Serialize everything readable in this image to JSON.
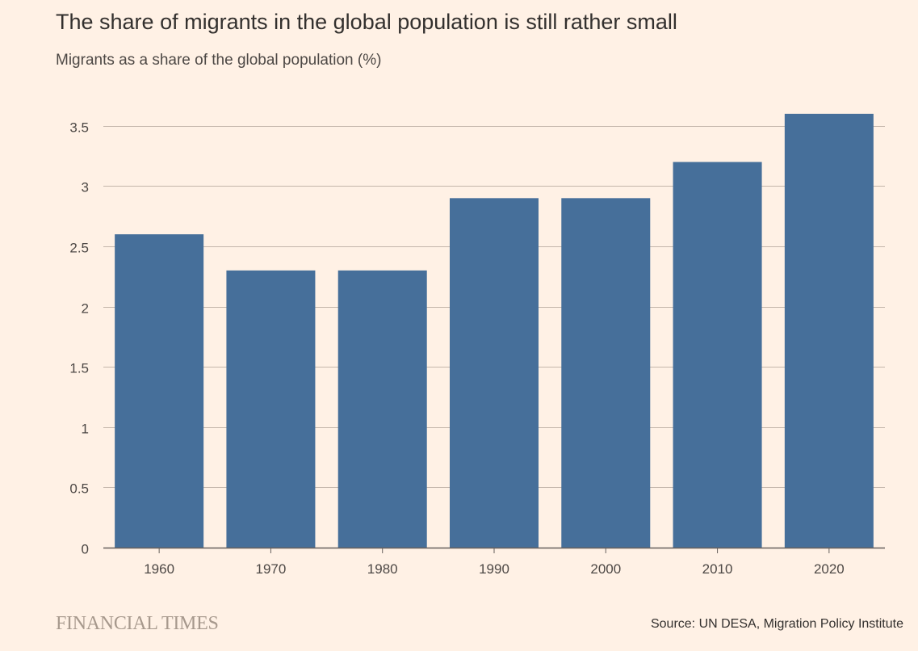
{
  "header": {
    "title": "The share of migrants in the global population is still rather small",
    "subtitle": "Migrants as a share of the global population (%)"
  },
  "footer": {
    "brand": "FINANCIAL TIMES",
    "source": "Source: UN DESA, Migration Policy Institute"
  },
  "colors": {
    "bar": "#466f9a",
    "grid": "#c4b6ab",
    "axis": "#66605c",
    "background": "#fff1e5"
  },
  "chart_data": {
    "type": "bar",
    "categories": [
      "1960",
      "1970",
      "1980",
      "1990",
      "2000",
      "2010",
      "2020"
    ],
    "values": [
      2.6,
      2.3,
      2.3,
      2.9,
      2.9,
      3.2,
      3.6
    ],
    "yticks": [
      0,
      0.5,
      1,
      1.5,
      2,
      2.5,
      3,
      3.5
    ],
    "ytick_labels": [
      "0",
      "0.5",
      "1",
      "1.5",
      "2",
      "2.5",
      "3",
      "3.5"
    ],
    "ylim": [
      0,
      3.6
    ],
    "grid": true,
    "legend": "none"
  }
}
